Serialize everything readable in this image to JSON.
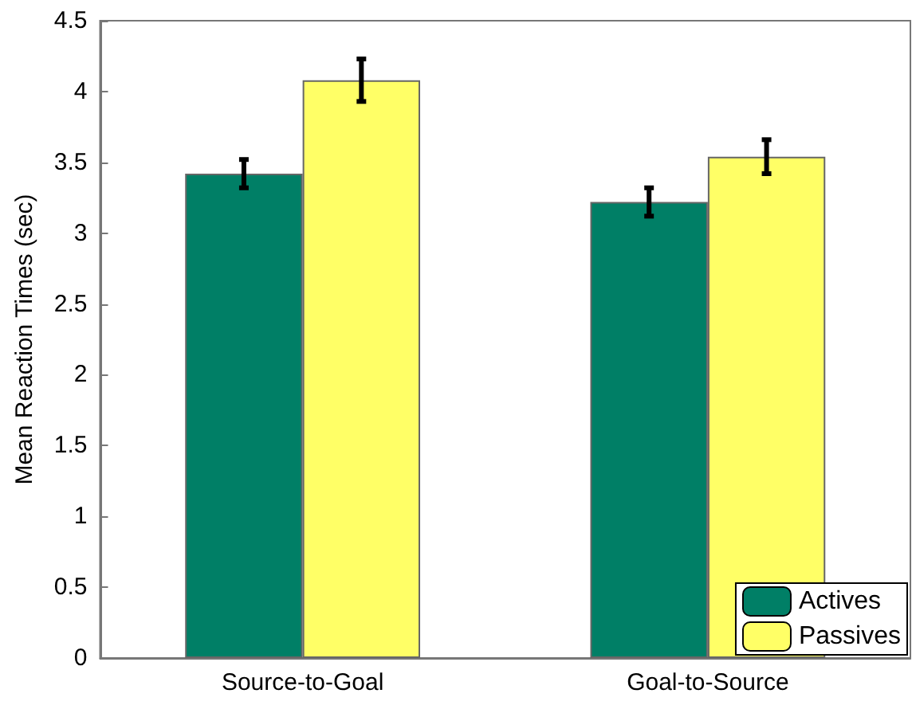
{
  "chart_data": {
    "type": "bar",
    "ylabel": "Mean Reaction Times (sec)",
    "categories": [
      "Source-to-Goal",
      "Goal-to-Source"
    ],
    "series": [
      {
        "name": "Actives",
        "color": "#007f66",
        "values": [
          3.42,
          3.22
        ],
        "errors": [
          0.1,
          0.1
        ]
      },
      {
        "name": "Passives",
        "color": "#ffff66",
        "values": [
          4.08,
          3.54
        ],
        "errors": [
          0.15,
          0.12
        ]
      }
    ],
    "ylim": [
      0,
      4.5
    ],
    "yticks": [
      0,
      0.5,
      1,
      1.5,
      2,
      2.5,
      3,
      3.5,
      4,
      4.5
    ],
    "grid": false,
    "legend": "bottom right"
  }
}
